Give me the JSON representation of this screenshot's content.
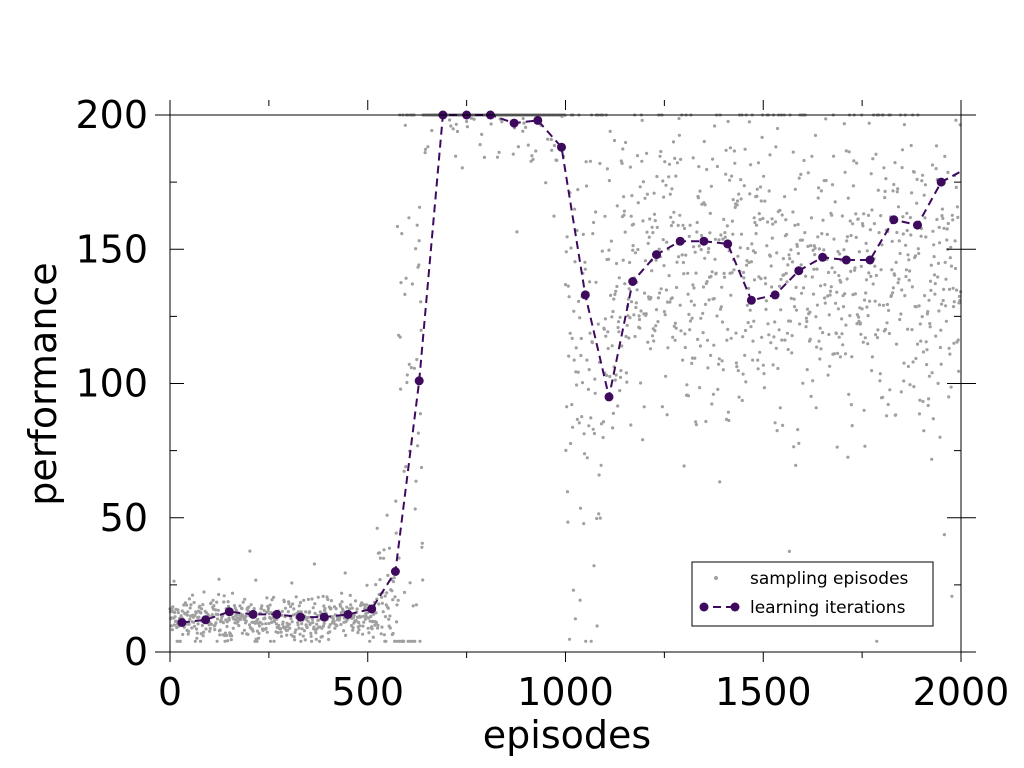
{
  "chart_data": {
    "type": "line",
    "title": "",
    "xlabel": "episodes",
    "ylabel": "performance",
    "xlim": [
      0,
      2000
    ],
    "ylim": [
      0,
      200
    ],
    "xticks": [
      "0",
      "500",
      "1000",
      "1500",
      "2000"
    ],
    "yticks": [
      "0",
      "50",
      "100",
      "150",
      "200"
    ],
    "grid": false,
    "legend_position": "bottom-right",
    "colors": {
      "sampling": "#a0a0a0",
      "learning": "#3d0a5e",
      "axes": "#000000"
    },
    "series": [
      {
        "name": "sampling episodes",
        "style": "scatter",
        "bands": [
          {
            "from": 0,
            "to": 520,
            "base": 12,
            "spread": 4,
            "outliers": 0.12,
            "max": 41
          },
          {
            "from": 520,
            "to": 570,
            "base": 18,
            "spread": 10,
            "outliers": 0.2,
            "max": 90
          },
          {
            "from": 570,
            "to": 640,
            "base": 60,
            "spread": 70,
            "outliers": 0.3,
            "max": 200
          },
          {
            "from": 640,
            "to": 1000,
            "base": 199,
            "spread": 10,
            "outliers": 0.1,
            "max": 200
          },
          {
            "from": 1000,
            "to": 1100,
            "base": 110,
            "spread": 45,
            "outliers": 0.2,
            "max": 200
          },
          {
            "from": 1100,
            "to": 2000,
            "base": 140,
            "spread": 28,
            "outliers": 0.15,
            "max": 200
          }
        ]
      },
      {
        "name": "learning iterations",
        "style": "dashed-line-markers",
        "x": [
          30,
          90,
          150,
          210,
          270,
          330,
          390,
          450,
          510,
          570,
          630,
          690,
          750,
          810,
          870,
          930,
          990,
          1050,
          1110,
          1170,
          1230,
          1290,
          1350,
          1410,
          1470,
          1530,
          1590,
          1650,
          1710,
          1770,
          1830,
          1890,
          1950,
          2000
        ],
        "y": [
          11,
          12,
          15,
          14,
          14,
          13,
          13,
          14,
          16,
          30,
          101,
          200,
          200,
          200,
          197,
          198,
          188,
          133,
          95,
          138,
          148,
          153,
          153,
          152,
          131,
          133,
          142,
          147,
          146,
          146,
          161,
          159,
          175,
          179
        ]
      }
    ]
  }
}
